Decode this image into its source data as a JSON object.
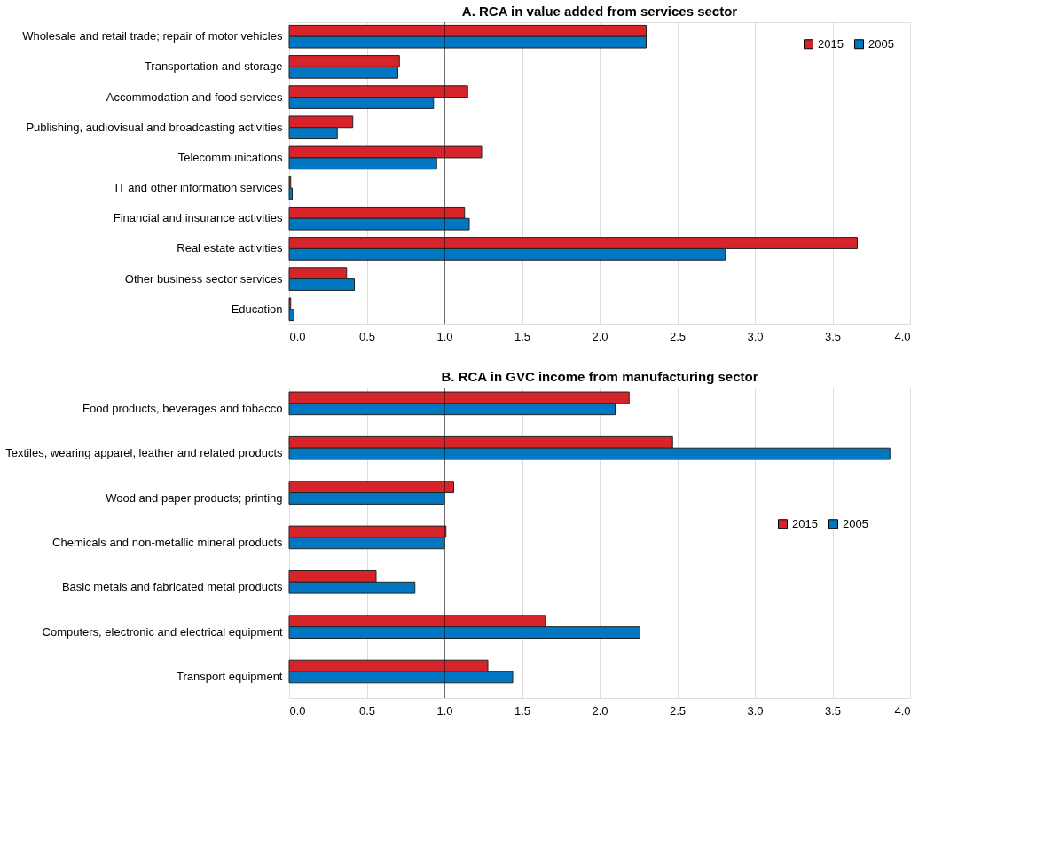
{
  "chart_data": [
    {
      "type": "bar",
      "orientation": "horizontal",
      "title": "A. RCA in value added from services sector",
      "categories": [
        "Wholesale and retail trade; repair of motor vehicles",
        "Transportation and storage",
        "Accommodation and food services",
        "Publishing, audiovisual and broadcasting activities",
        "Telecommunications",
        "IT and other information services",
        "Financial and insurance activities",
        "Real estate activities",
        "Other business sector services",
        "Education"
      ],
      "series": [
        {
          "name": "2015",
          "color": "#d7232a",
          "values": [
            2.3,
            0.71,
            1.15,
            0.41,
            1.24,
            0.01,
            1.13,
            3.66,
            0.37,
            0.01
          ]
        },
        {
          "name": "2005",
          "color": "#0077c0",
          "values": [
            2.3,
            0.7,
            0.93,
            0.31,
            0.95,
            0.02,
            1.16,
            2.81,
            0.42,
            0.03
          ]
        }
      ],
      "xlim": [
        0,
        4
      ],
      "xticks": [
        {
          "value": 0,
          "label": "0.0"
        },
        0.5,
        {
          "value": 1,
          "label": "1.0"
        },
        1.5,
        {
          "value": 2,
          "label": "2.0"
        },
        2.5,
        {
          "value": 3,
          "label": "3.0"
        },
        3.5,
        {
          "value": 4,
          "label": "4.0"
        }
      ],
      "grid": "x",
      "legend": "top right",
      "ref_lines": [
        {
          "axis": "x",
          "value": 1,
          "color": "#000000"
        }
      ]
    },
    {
      "type": "bar",
      "orientation": "horizontal",
      "title": "B. RCA in GVC income from manufacturing sector",
      "categories": [
        "Food products, beverages and tobacco",
        "Textiles, wearing apparel, leather and related products",
        "Wood and paper products; printing",
        "Chemicals and non-metallic mineral products",
        "Basic metals and fabricated metal products",
        "Computers, electronic and electrical equipment",
        "Transport equipment"
      ],
      "series": [
        {
          "name": "2015",
          "color": "#d7232a",
          "values": [
            2.19,
            2.47,
            1.06,
            1.01,
            0.56,
            1.65,
            1.28
          ]
        },
        {
          "name": "2005",
          "color": "#0077c0",
          "values": [
            2.1,
            3.87,
            1.0,
            1.0,
            0.81,
            2.26,
            1.44
          ]
        }
      ],
      "xlim": [
        0,
        4
      ],
      "xticks": [
        {
          "value": 0,
          "label": "0.0"
        },
        0.5,
        {
          "value": 1,
          "label": "1.0"
        },
        1.5,
        {
          "value": 2,
          "label": "2.0"
        },
        2.5,
        {
          "value": 3,
          "label": "3.0"
        },
        3.5,
        {
          "value": 4,
          "label": "4.0"
        }
      ],
      "grid": "x",
      "legend": "right",
      "ref_lines": [
        {
          "axis": "x",
          "value": 1,
          "color": "#000000"
        }
      ]
    }
  ]
}
